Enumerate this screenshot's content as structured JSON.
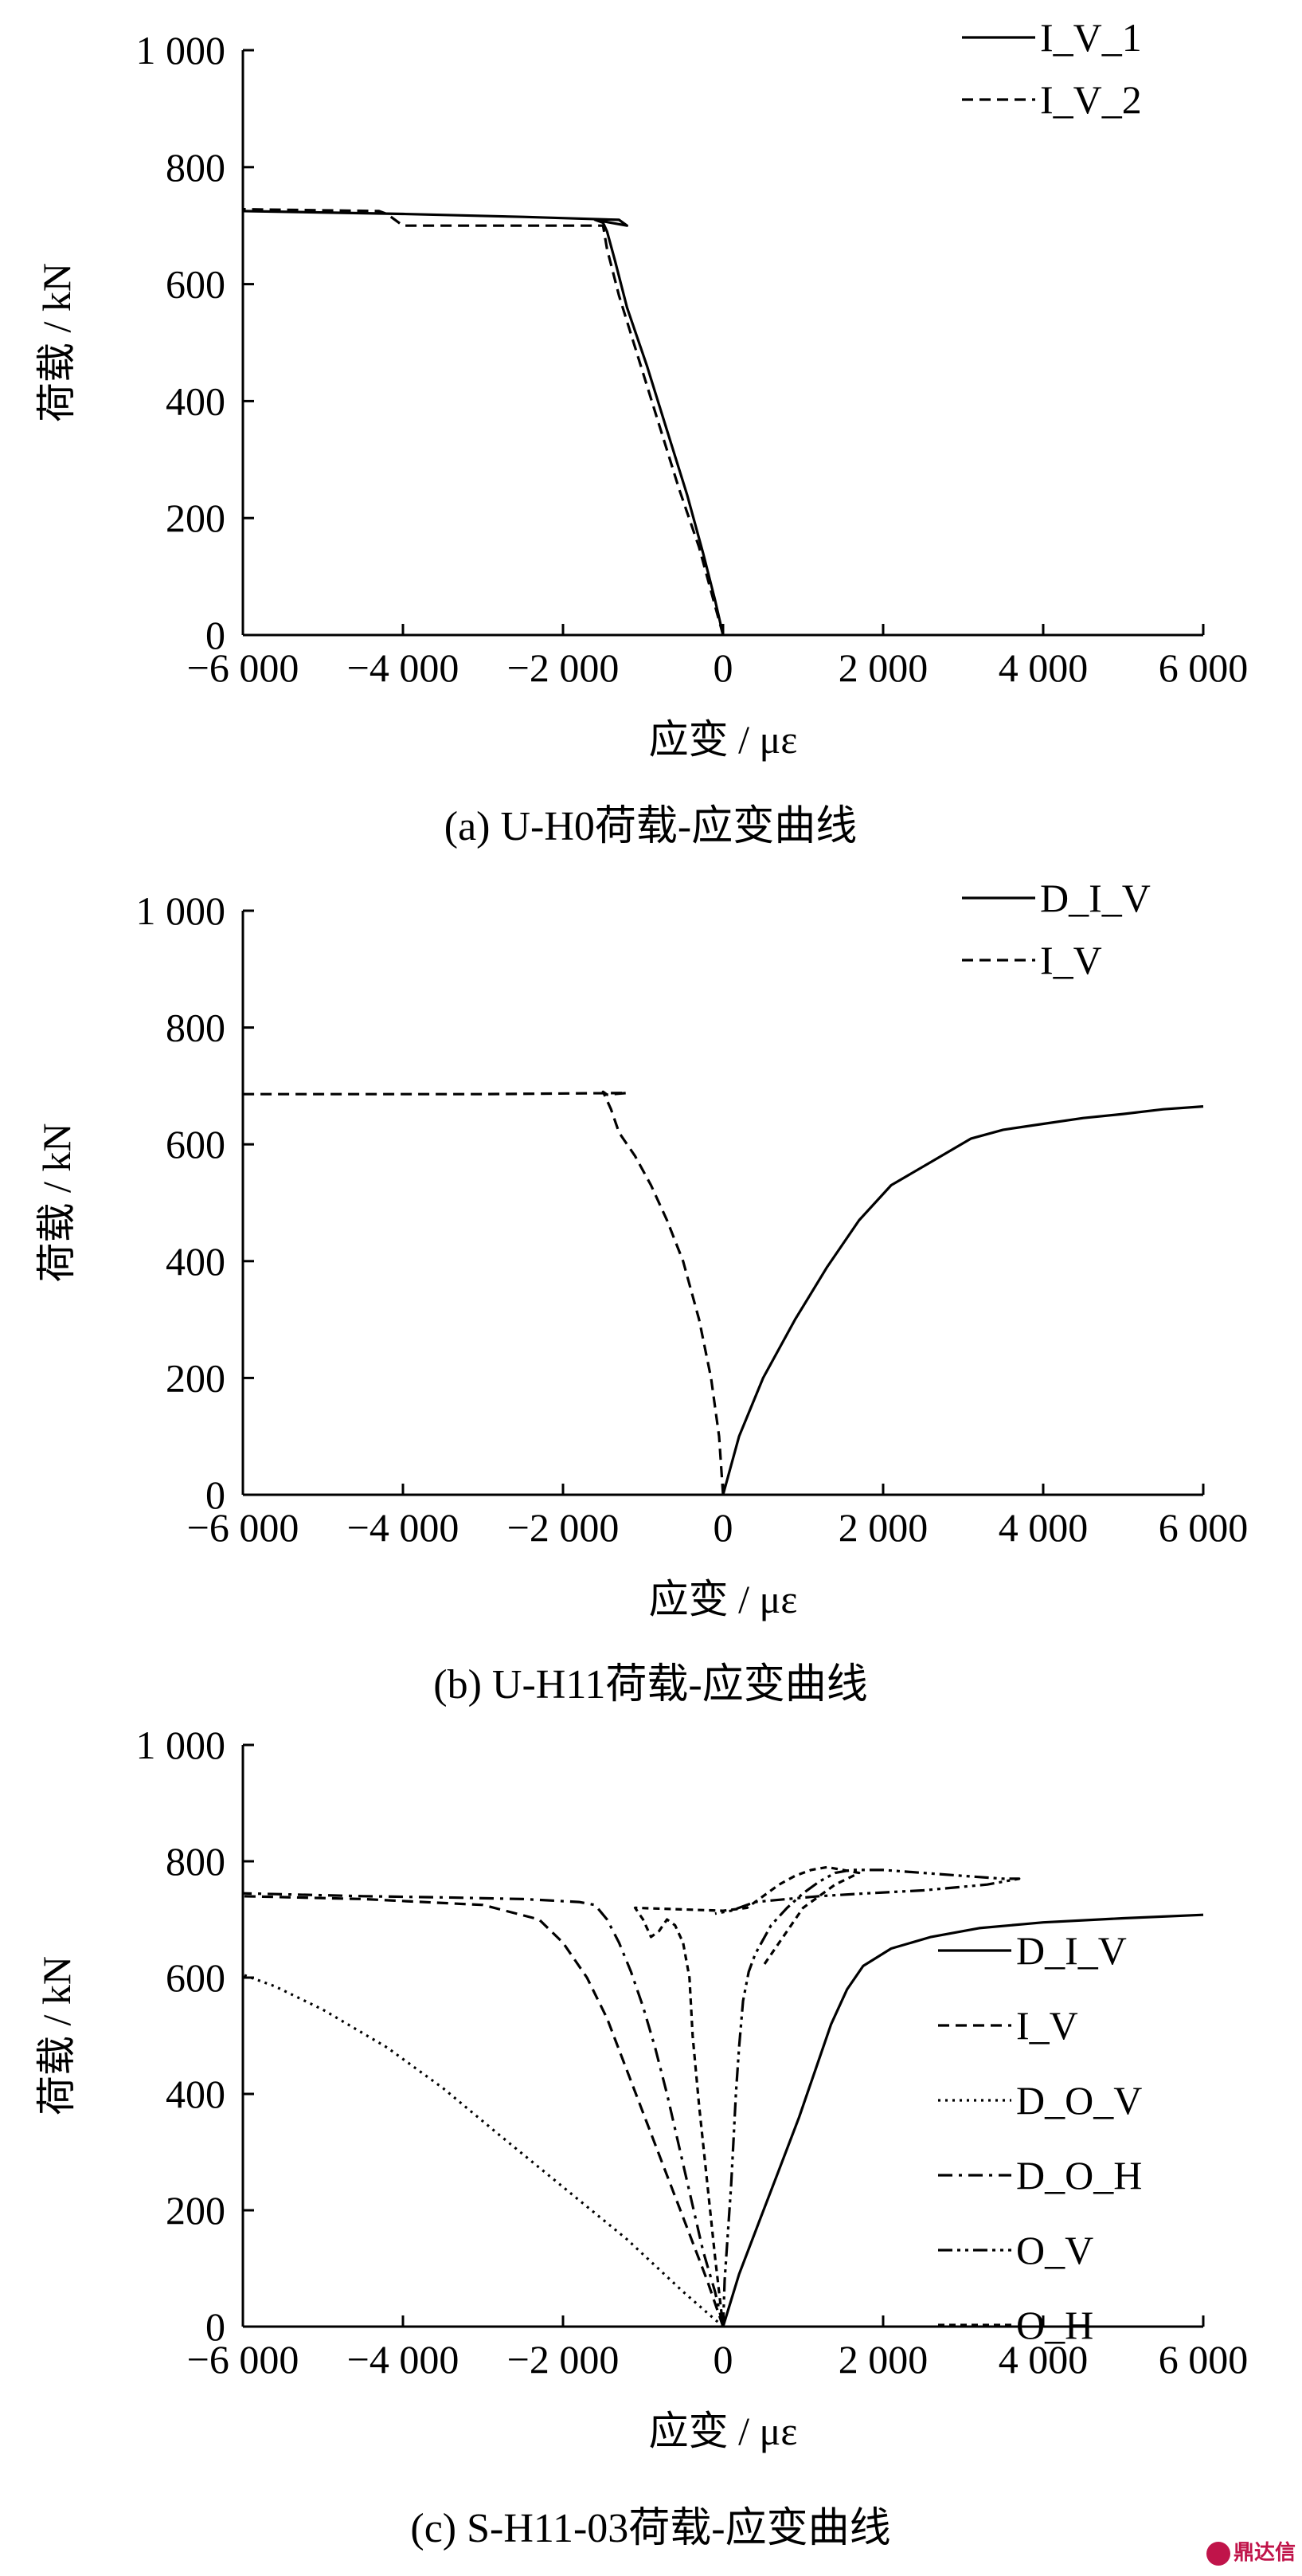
{
  "figure": {
    "watermark": "鼎达信"
  },
  "chart_data": [
    {
      "type": "line",
      "caption": "(a)  U-H0荷载-应变曲线",
      "xlabel": "应变 / με",
      "ylabel": "荷载 / kN",
      "xlim": [
        -6000,
        6000
      ],
      "ylim": [
        0,
        1000
      ],
      "xticks": [
        -6000,
        -4000,
        -2000,
        0,
        2000,
        4000,
        6000
      ],
      "xtick_labels": [
        "−6 000",
        "−4 000",
        "−2 000",
        "0",
        "2 000",
        "4 000",
        "6 000"
      ],
      "yticks": [
        0,
        200,
        400,
        600,
        800,
        1000
      ],
      "ytick_labels": [
        "0",
        "200",
        "400",
        "600",
        "800",
        "1 000"
      ],
      "grid": false,
      "legend_position": "top-right",
      "series": [
        {
          "name": "I_V_1",
          "dash": "solid",
          "x": [
            0,
            -100,
            -250,
            -450,
            -700,
            -950,
            -1200,
            -1350,
            -1450,
            -1500,
            -1600,
            -1200,
            -1300,
            -2500,
            -4000,
            -6000
          ],
          "y": [
            0,
            60,
            140,
            240,
            350,
            460,
            560,
            640,
            690,
            705,
            710,
            700,
            710,
            715,
            720,
            725
          ]
        },
        {
          "name": "I_V_2",
          "dash": "dashed",
          "x": [
            0,
            -120,
            -300,
            -550,
            -800,
            -1050,
            -1300,
            -1450,
            -1500,
            -2500,
            -4000,
            -4200,
            -4300,
            -6000
          ],
          "y": [
            0,
            60,
            150,
            250,
            360,
            470,
            580,
            660,
            700,
            700,
            700,
            720,
            725,
            728
          ]
        }
      ]
    },
    {
      "type": "line",
      "caption": "(b)  U-H11荷载-应变曲线",
      "xlabel": "应变 / με",
      "ylabel": "荷载 / kN",
      "xlim": [
        -6000,
        6000
      ],
      "ylim": [
        0,
        1000
      ],
      "xticks": [
        -6000,
        -4000,
        -2000,
        0,
        2000,
        4000,
        6000
      ],
      "xtick_labels": [
        "−6 000",
        "−4 000",
        "−2 000",
        "0",
        "2 000",
        "4 000",
        "6 000"
      ],
      "yticks": [
        0,
        200,
        400,
        600,
        800,
        1000
      ],
      "ytick_labels": [
        "0",
        "200",
        "400",
        "600",
        "800",
        "1 000"
      ],
      "grid": false,
      "legend_position": "top-right",
      "series": [
        {
          "name": "D_I_V",
          "dash": "solid",
          "x": [
            0,
            200,
            500,
            900,
            1300,
            1700,
            2100,
            2600,
            3100,
            3500,
            4000,
            4500,
            5000,
            5500,
            6000
          ],
          "y": [
            0,
            100,
            200,
            300,
            390,
            470,
            530,
            570,
            610,
            625,
            635,
            645,
            652,
            660,
            665
          ]
        },
        {
          "name": "I_V",
          "dash": "dashed",
          "x": [
            0,
            -50,
            -150,
            -300,
            -500,
            -700,
            -900,
            -1100,
            -1300,
            -1400,
            -1500,
            -1450,
            -1200,
            -3000,
            -4500,
            -6000
          ],
          "y": [
            0,
            100,
            200,
            300,
            400,
            470,
            530,
            580,
            620,
            660,
            690,
            685,
            688,
            686,
            686,
            686
          ]
        }
      ]
    },
    {
      "type": "line",
      "caption": "(c)  S-H11-03荷载-应变曲线",
      "xlabel": "应变 / με",
      "ylabel": "荷载 / kN",
      "xlim": [
        -6000,
        6000
      ],
      "ylim": [
        0,
        1000
      ],
      "xticks": [
        -6000,
        -4000,
        -2000,
        0,
        2000,
        4000,
        6000
      ],
      "xtick_labels": [
        "−6 000",
        "−4 000",
        "−2 000",
        "0",
        "2 000",
        "4 000",
        "6 000"
      ],
      "yticks": [
        0,
        200,
        400,
        600,
        800,
        1000
      ],
      "ytick_labels": [
        "0",
        "200",
        "400",
        "600",
        "800",
        "1 000"
      ],
      "grid": false,
      "legend_position": "right",
      "series": [
        {
          "name": "D_I_V",
          "dash": "solid",
          "x": [
            0,
            200,
            450,
            700,
            950,
            1150,
            1350,
            1550,
            1750,
            2100,
            2600,
            3200,
            4000,
            5000,
            6000
          ],
          "y": [
            0,
            90,
            180,
            270,
            360,
            440,
            520,
            580,
            620,
            650,
            670,
            685,
            695,
            702,
            708
          ]
        },
        {
          "name": "I_V",
          "dash": "dashed",
          "x": [
            0,
            -200,
            -450,
            -700,
            -950,
            -1200,
            -1450,
            -1700,
            -2000,
            -2300,
            -3000,
            -4500,
            -6000
          ],
          "y": [
            0,
            80,
            170,
            260,
            350,
            440,
            530,
            600,
            660,
            700,
            725,
            735,
            740
          ]
        },
        {
          "name": "D_O_V",
          "dash": "dotted",
          "x": [
            0,
            -500,
            -1200,
            -2000,
            -2800,
            -3500,
            -4200,
            -5000,
            -5600,
            -6000
          ],
          "y": [
            0,
            60,
            150,
            240,
            330,
            410,
            480,
            545,
            585,
            605
          ]
        },
        {
          "name": "D_O_H",
          "dash": "dashdot",
          "x": [
            0,
            -100,
            -250,
            -400,
            -550,
            -700,
            -850,
            -1000,
            -1150,
            -1300,
            -1450,
            -1600,
            -1800,
            -2500,
            -3500,
            -4500,
            -6000
          ],
          "y": [
            0,
            60,
            130,
            220,
            310,
            400,
            480,
            550,
            610,
            660,
            700,
            725,
            730,
            735,
            738,
            740,
            745
          ]
        },
        {
          "name": "O_V",
          "dash": "dashdotdot",
          "x": [
            0,
            20,
            60,
            100,
            130,
            160,
            200,
            250,
            320,
            400,
            480,
            600,
            800,
            1000,
            1200,
            1400,
            1600,
            2000,
            2500,
            3000,
            3500,
            3700,
            3300,
            2500,
            1800,
            1200,
            800,
            400,
            100,
            -100
          ],
          "y": [
            0,
            80,
            160,
            240,
            320,
            400,
            480,
            560,
            610,
            640,
            660,
            690,
            720,
            745,
            765,
            780,
            785,
            785,
            780,
            775,
            770,
            770,
            760,
            750,
            745,
            740,
            735,
            730,
            715,
            710
          ]
        },
        {
          "name": "O_H",
          "dash": "shortdash",
          "x": [
            0,
            -100,
            -200,
            -300,
            -380,
            -420,
            -500,
            -600,
            -700,
            -800,
            -900,
            -1000,
            -1100,
            0,
            300,
            500,
            700,
            900,
            1100,
            1300,
            1500,
            1700,
            1400,
            1000,
            700,
            500
          ],
          "y": [
            0,
            120,
            250,
            380,
            500,
            600,
            660,
            690,
            700,
            680,
            670,
            700,
            720,
            715,
            720,
            740,
            760,
            775,
            785,
            790,
            785,
            780,
            760,
            720,
            660,
            620
          ]
        }
      ]
    }
  ]
}
